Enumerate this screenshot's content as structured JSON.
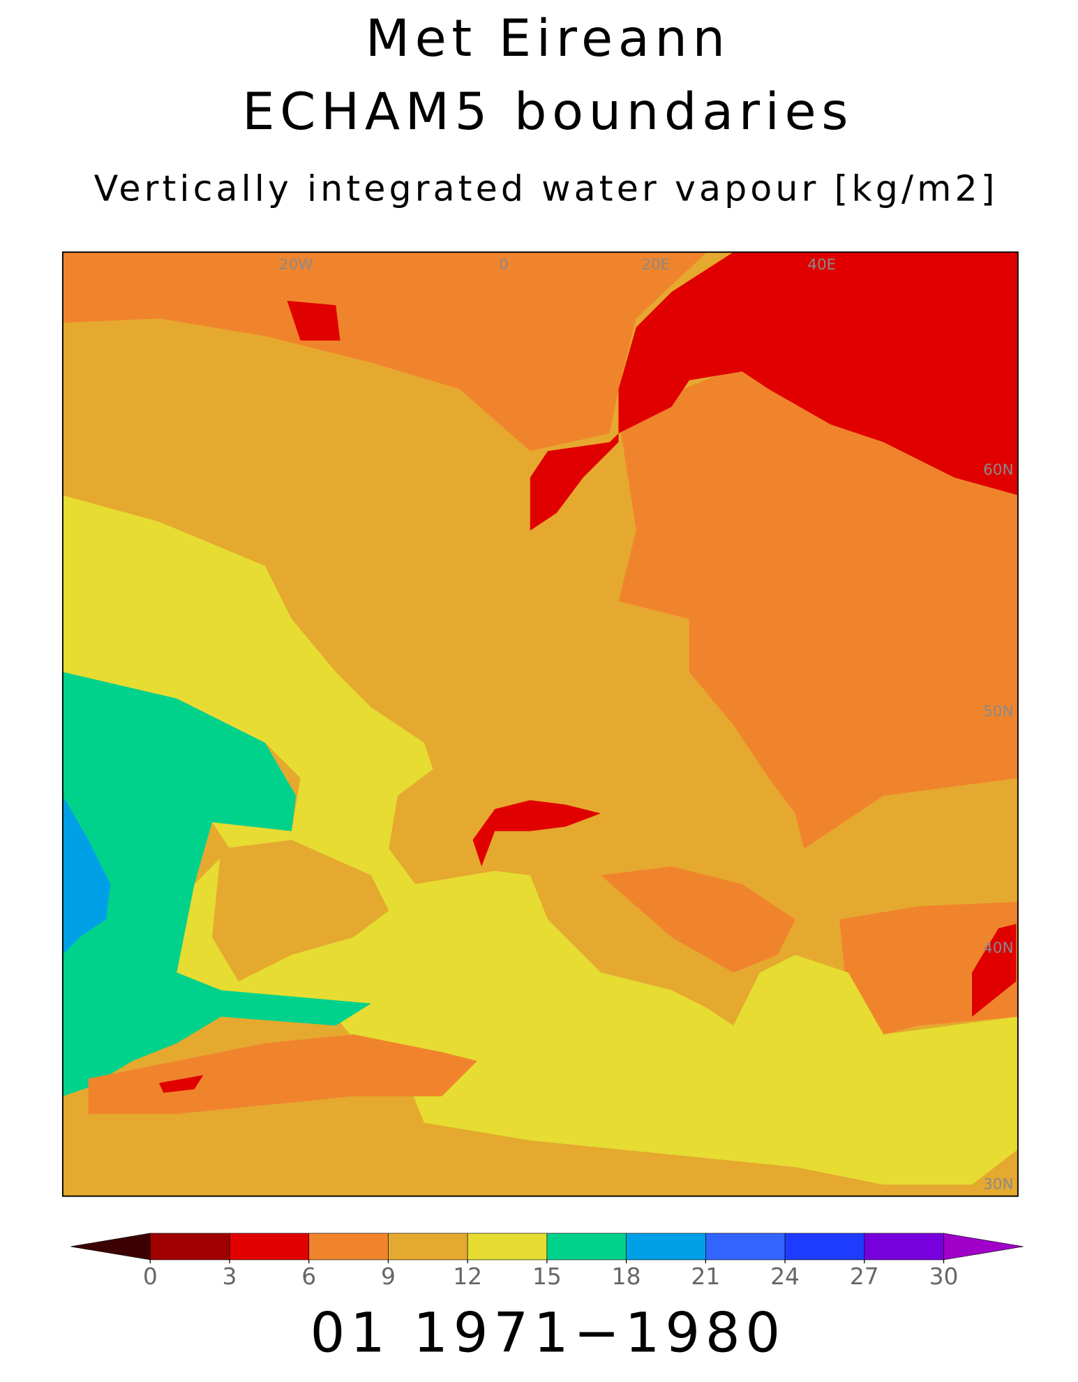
{
  "title": {
    "line1": "Met Eireann",
    "line2": "ECHAM5 boundaries",
    "line3": "Vertically integrated water vapour [kg/m2]"
  },
  "map": {
    "grid_labels": [
      "20W",
      "0",
      "20E",
      "40E",
      "60N",
      "50N",
      "40N",
      "30N"
    ]
  },
  "colorbar": {
    "ticks": [
      0,
      3,
      6,
      9,
      12,
      15,
      18,
      21,
      24,
      27,
      30
    ],
    "colors": [
      "#a00000",
      "#e00000",
      "#f0842c",
      "#e5a92f",
      "#e6dc32",
      "#00d28c",
      "#00a0e6",
      "#3264ff",
      "#1e3cff",
      "#7800dc"
    ],
    "under_color": "#3c0000",
    "over_color": "#a000c8"
  },
  "footer": "01 1971−1980"
}
